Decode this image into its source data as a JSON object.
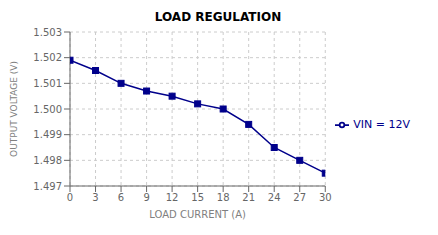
{
  "chart_data": {
    "type": "line",
    "title": "LOAD REGULATION",
    "x_label": "LOAD CURRENT (A)",
    "y_label": "OUTPUT VOLTAGE (V)",
    "x": [
      0,
      3,
      6,
      9,
      12,
      15,
      18,
      21,
      24,
      27,
      30
    ],
    "series": [
      {
        "name": "VIN = 12V",
        "color": "#00008B",
        "marker": "square",
        "values": [
          1.5019,
          1.5015,
          1.501,
          1.5007,
          1.5005,
          1.5002,
          1.5,
          1.4994,
          1.4985,
          1.498,
          1.4975
        ]
      }
    ],
    "xlim": [
      0,
      30
    ],
    "ylim": [
      1.497,
      1.503
    ],
    "xticks": [
      0,
      3,
      6,
      9,
      12,
      15,
      18,
      21,
      24,
      27,
      30
    ],
    "yticks": [
      1.497,
      1.498,
      1.499,
      {
        "value": 1.5,
        "label": "1.500"
      },
      1.501,
      1.502,
      1.503
    ],
    "grid": true,
    "legend": "right"
  }
}
